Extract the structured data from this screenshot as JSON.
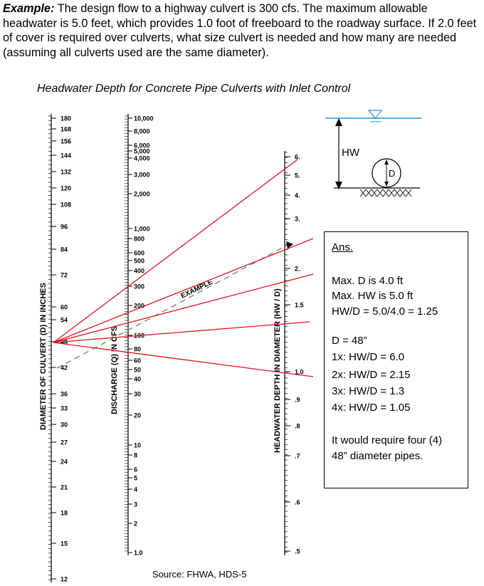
{
  "problem": {
    "label": "Example:",
    "text": " The design flow to a highway culvert is 300 cfs.  The maximum allowable headwater is 5.0 feet, which provides 1.0 foot of freeboard to the roadway surface.  If 2.0 feet of cover is required over culverts, what size culvert is needed and how many are needed (assuming all culverts used are the same diameter)."
  },
  "nomograph": {
    "title": "Headwater Depth for Concrete Pipe Culverts with Inlet Control",
    "diameter_axis": {
      "label": "DIAMETER OF CULVERT (D) IN INCHES",
      "ticks": [
        "180",
        "168",
        "156",
        "144",
        "132",
        "120",
        "108",
        "96",
        "84",
        "72",
        "60",
        "54",
        "48",
        "42",
        "36",
        "33",
        "30",
        "27",
        "24",
        "21",
        "18",
        "15",
        "12"
      ]
    },
    "discharge_axis": {
      "label": "DISCHARGE (Q) IN CFS",
      "ticks": [
        "10,000",
        "8,000",
        "6,000",
        "5,000",
        "4,000",
        "3,000",
        "2,000",
        "1,000",
        "800",
        "600",
        "500",
        "400",
        "300",
        "200",
        "100",
        "80",
        "60",
        "50",
        "40",
        "30",
        "20",
        "10",
        "8",
        "6",
        "5",
        "4",
        "3",
        "2",
        "1.0"
      ]
    },
    "hw_axis": {
      "label": "HEADWATER DEPTH IN DIAMETER (HW / D)",
      "ticks": [
        "6.",
        "5.",
        "4.",
        "3.",
        "2.",
        "1.5",
        "1.0",
        ".9",
        ".8",
        ".7",
        ".6",
        ".5"
      ]
    },
    "example_label": "EXAMPLE",
    "line_color": "#e8141e",
    "schematic": {
      "hw_label": "HW",
      "d_label": "D"
    }
  },
  "answer": {
    "heading": "Ans.",
    "lines": [
      "Max. D is 4.0 ft",
      "Max. HW is 5.0 ft",
      "HW/D = 5.0/4.0 = 1.25",
      "D = 48”",
      "1x: HW/D = 6.0",
      "2x: HW/D = 2.15",
      "3x: HW/D = 1.3",
      "4x: HW/D = 1.05",
      "It would require four (4)",
      "48” diameter pipes."
    ]
  },
  "source": "Source:  FHWA, HDS-5"
}
